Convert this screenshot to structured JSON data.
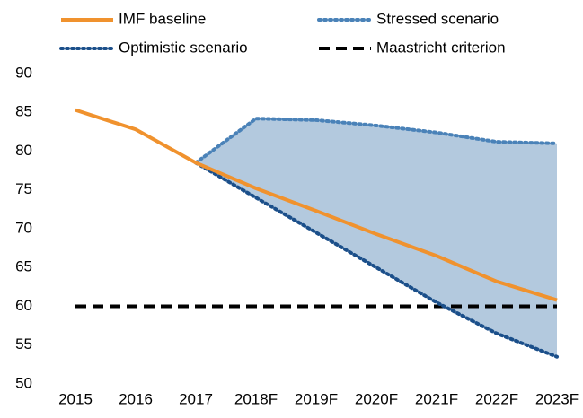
{
  "chart_data": {
    "type": "line",
    "categories": [
      "2015",
      "2016",
      "2017",
      "2018F",
      "2019F",
      "2020F",
      "2021F",
      "2022F",
      "2023F"
    ],
    "series": [
      {
        "name": "IMF baseline",
        "color": "#f0922e",
        "dash": "solid",
        "values": [
          85.3,
          82.8,
          78.5,
          75.2,
          72.3,
          69.3,
          66.5,
          63.2,
          60.8
        ]
      },
      {
        "name": "Stressed scenario",
        "color": "#4a82b8",
        "dash": "dot",
        "values": [
          null,
          null,
          78.5,
          84.2,
          84.0,
          83.3,
          82.4,
          81.2,
          81.0
        ]
      },
      {
        "name": "Optimistic scenario",
        "color": "#1b4f8a",
        "dash": "dot",
        "values": [
          null,
          null,
          78.5,
          74.0,
          69.5,
          65.0,
          60.5,
          56.5,
          53.5
        ]
      },
      {
        "name": "Maastricht criterion",
        "color": "#000000",
        "dash": "dash",
        "values": [
          60,
          60,
          60,
          60,
          60,
          60,
          60,
          60,
          60
        ]
      }
    ],
    "band": {
      "between": [
        1,
        2
      ],
      "color": "#b3c9de"
    },
    "ylim": [
      50,
      90
    ],
    "yticks": [
      50,
      55,
      60,
      65,
      70,
      75,
      80,
      85,
      90
    ],
    "grid": false
  }
}
